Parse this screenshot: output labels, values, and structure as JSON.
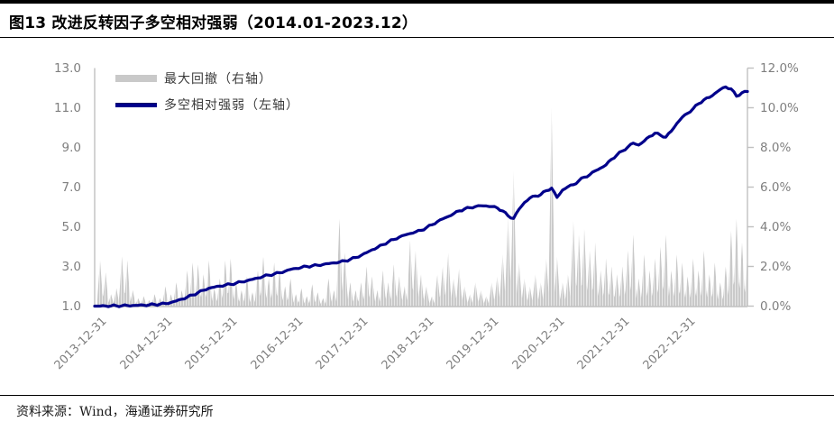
{
  "figure": {
    "title": "图13 改进反转因子多空相对强弱（2014.01-2023.12）",
    "source_note": "资料来源：Wind，海通证券研究所"
  },
  "chart_data": {
    "type": "combo: area (drawdown, right axis) + line (long-short strength, left axis)",
    "title": "图13 改进反转因子多空相对强弱（2014.01-2023.12）",
    "x_unit": "month",
    "x_start": "2013-12",
    "x_end": "2023-12",
    "n_points": 121,
    "x_tick_labels": [
      "2013-12-31",
      "2014-12-31",
      "2015-12-31",
      "2016-12-31",
      "2017-12-31",
      "2018-12-31",
      "2019-12-31",
      "2020-12-31",
      "2021-12-31",
      "2022-12-31"
    ],
    "left_axis": {
      "range": [
        1.0,
        13.0
      ],
      "tick_labels": [
        "13.0",
        "11.0",
        "9.0",
        "7.0",
        "5.0",
        "3.0",
        "1.0"
      ]
    },
    "right_axis": {
      "range_percent": [
        0.0,
        12.0
      ],
      "tick_labels": [
        "12.0%",
        "10.0%",
        "8.0%",
        "6.0%",
        "4.0%",
        "2.0%",
        "0.0%"
      ]
    },
    "legend_position": "top-left",
    "grid": false,
    "colors": {
      "axis_line": "#c0c0c0",
      "tick_text": "#7f7f7f",
      "bar_fill": "#c9c9c9",
      "line_stroke": "#00008b"
    },
    "series": [
      {
        "name": "最大回撤（右轴）",
        "type": "area",
        "axis": "right",
        "unit": "%",
        "color": "#c9c9c9",
        "values": [
          0.1,
          2.3,
          1.7,
          0.6,
          0.9,
          2.5,
          2.3,
          0.8,
          0.4,
          0.5,
          0.3,
          0.6,
          0.4,
          1.0,
          0.6,
          1.2,
          0.8,
          1.8,
          2.2,
          2.1,
          1.6,
          2.3,
          0.9,
          1.4,
          2.3,
          2.4,
          1.2,
          0.8,
          1.5,
          0.7,
          1.8,
          2.5,
          1.4,
          2.2,
          1.8,
          1.0,
          1.4,
          0.6,
          0.9,
          0.5,
          1.1,
          0.7,
          0.4,
          1.4,
          0.8,
          4.4,
          2.7,
          1.2,
          0.8,
          1.2,
          2.0,
          1.5,
          0.8,
          1.8,
          1.2,
          2.1,
          1.5,
          1.0,
          3.3,
          2.8,
          1.6,
          1.0,
          0.5,
          1.6,
          2.0,
          2.7,
          1.4,
          1.9,
          1.0,
          0.6,
          1.2,
          0.8,
          0.5,
          1.2,
          1.5,
          2.6,
          4.5,
          6.8,
          2.2,
          1.4,
          1.0,
          1.6,
          1.2,
          2.4,
          10.0,
          2.5,
          1.2,
          1.6,
          4.3,
          3.6,
          3.9,
          2.8,
          3.2,
          1.8,
          2.4,
          2.0,
          1.6,
          2.0,
          2.8,
          3.6,
          1.4,
          2.6,
          1.8,
          2.4,
          3.0,
          3.6,
          1.8,
          2.6,
          2.2,
          1.5,
          2.4,
          1.8,
          2.8,
          1.6,
          2.2,
          1.2,
          2.0,
          3.8,
          4.4,
          3.2,
          2.5
        ]
      },
      {
        "name": "多空相对强弱（左轴）",
        "type": "line",
        "axis": "left",
        "color": "#00008b",
        "values": [
          1.0,
          1.0,
          1.01,
          1.01,
          1.02,
          1.02,
          1.03,
          1.03,
          1.04,
          1.05,
          1.06,
          1.08,
          1.1,
          1.13,
          1.18,
          1.26,
          1.35,
          1.45,
          1.56,
          1.68,
          1.8,
          1.9,
          1.96,
          2.01,
          2.06,
          2.1,
          2.16,
          2.22,
          2.28,
          2.35,
          2.42,
          2.5,
          2.56,
          2.62,
          2.68,
          2.76,
          2.85,
          2.9,
          2.95,
          3.0,
          3.03,
          3.06,
          3.1,
          3.14,
          3.18,
          3.22,
          3.28,
          3.36,
          3.45,
          3.56,
          3.7,
          3.84,
          3.96,
          4.1,
          4.24,
          4.36,
          4.48,
          4.58,
          4.66,
          4.74,
          4.82,
          4.96,
          5.1,
          5.26,
          5.4,
          5.52,
          5.66,
          5.8,
          5.9,
          5.96,
          6.02,
          6.06,
          6.05,
          6.02,
          5.95,
          5.8,
          5.55,
          5.42,
          5.88,
          6.22,
          6.45,
          6.55,
          6.62,
          6.82,
          6.95,
          6.48,
          6.85,
          7.02,
          7.12,
          7.32,
          7.5,
          7.62,
          7.82,
          7.96,
          8.12,
          8.4,
          8.62,
          8.82,
          9.02,
          9.22,
          9.12,
          9.32,
          9.55,
          9.72,
          9.62,
          9.52,
          9.82,
          10.2,
          10.52,
          10.72,
          10.95,
          11.2,
          11.4,
          11.52,
          11.72,
          11.92,
          12.05,
          11.95,
          11.58,
          11.76,
          11.82
        ]
      }
    ]
  }
}
